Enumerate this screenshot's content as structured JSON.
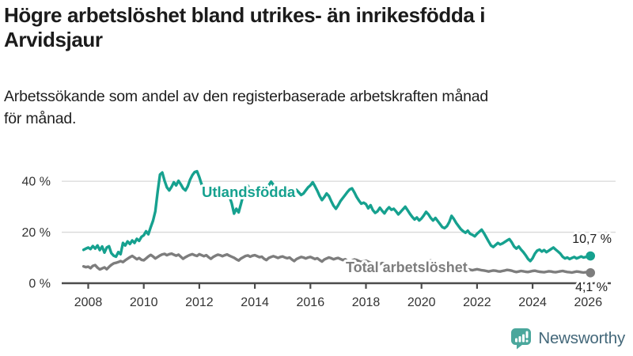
{
  "header": {
    "title_lines": [
      "Högre arbetslöshet bland utrikes- än inrikesfödda i",
      "Arvidsjaur"
    ],
    "subtitle_lines": [
      "Arbetssökande som andel av den registerbaserade arbetskraften månad",
      "för månad."
    ]
  },
  "chart_data": {
    "type": "line",
    "unit": "%",
    "x_start": {
      "year": 2007,
      "month": 11
    },
    "x_resolution": "monthly",
    "x_tick_years": [
      2008,
      2010,
      2012,
      2014,
      2016,
      2018,
      2020,
      2022,
      2024,
      2026
    ],
    "x_tick_labels": [
      "2008",
      "2010",
      "2012",
      "2014",
      "2016",
      "2018",
      "2020",
      "2022",
      "2024",
      "2026"
    ],
    "y_ticks": [
      0,
      20,
      40
    ],
    "y_tick_labels": [
      "0 %",
      "20 %",
      "40 %"
    ],
    "ylim": [
      0,
      46
    ],
    "grid": "horizontal",
    "grid_color": "#d9d9d9",
    "axis_color": "#4c4c4c",
    "series": [
      {
        "name": "Utlandsfödda",
        "color": "#16a18f",
        "end_value": 10.7,
        "end_label": "10,7 %",
        "values": [
          13.1,
          13.6,
          14.0,
          13.4,
          14.6,
          13.6,
          14.8,
          13.0,
          14.4,
          12.0,
          14.0,
          14.5,
          11.8,
          10.8,
          10.4,
          12.2,
          11.4,
          15.8,
          14.8,
          16.4,
          15.4,
          16.8,
          15.8,
          17.4,
          16.6,
          18.2,
          18.8,
          20.4,
          19.2,
          22.0,
          24.5,
          28.2,
          36.0,
          42.6,
          43.4,
          40.2,
          37.6,
          36.4,
          37.8,
          39.6,
          38.4,
          40.2,
          38.8,
          37.2,
          36.4,
          38.0,
          40.6,
          42.4,
          43.6,
          43.9,
          41.6,
          38.8,
          37.6,
          37.0,
          37.8,
          36.8,
          37.4,
          36.6,
          37.2,
          36.4,
          36.0,
          35.6,
          35.2,
          34.0,
          31.4,
          27.3,
          29.2,
          27.8,
          31.2,
          34.6,
          37.6,
          38.2,
          36.4,
          35.6,
          35.0,
          34.2,
          35.4,
          34.6,
          35.8,
          36.6,
          38.4,
          39.8,
          38.6,
          36.8,
          35.6,
          34.8,
          35.4,
          36.6,
          37.6,
          36.2,
          34.8,
          35.4,
          36.6,
          35.6,
          34.6,
          35.2,
          36.4,
          37.6,
          38.4,
          39.6,
          38.0,
          36.2,
          34.2,
          32.6,
          33.8,
          35.2,
          34.2,
          32.2,
          30.4,
          29.2,
          30.6,
          32.2,
          33.4,
          34.6,
          35.8,
          36.8,
          37.2,
          35.6,
          33.8,
          32.4,
          31.2,
          31.6,
          31.0,
          29.4,
          30.6,
          28.6,
          27.6,
          28.2,
          29.6,
          28.4,
          27.4,
          28.8,
          29.8,
          28.8,
          29.2,
          28.2,
          27.0,
          28.0,
          29.0,
          30.0,
          28.6,
          27.2,
          26.0,
          25.0,
          25.8,
          24.6,
          25.4,
          26.6,
          28.0,
          27.0,
          25.6,
          24.6,
          25.6,
          24.4,
          23.2,
          22.0,
          21.6,
          22.4,
          24.0,
          26.4,
          25.2,
          23.6,
          22.4,
          21.2,
          20.4,
          19.8,
          20.6,
          19.4,
          19.0,
          18.4,
          19.4,
          20.2,
          21.0,
          19.6,
          18.0,
          16.4,
          14.8,
          14.2,
          15.0,
          15.8,
          15.2,
          15.6,
          16.2,
          16.8,
          17.3,
          16.0,
          14.4,
          13.6,
          14.4,
          13.2,
          12.2,
          11.0,
          9.6,
          8.7,
          9.8,
          11.6,
          12.8,
          13.2,
          12.4,
          13.0,
          12.2,
          12.8,
          13.4,
          14.0,
          13.2,
          12.4,
          11.6,
          10.4,
          9.7,
          10.1,
          9.5,
          9.9,
          10.3,
          9.7,
          10.1,
          10.5,
          10.1,
          10.3,
          10.4,
          10.7
        ]
      },
      {
        "name": "Total arbetslöshet",
        "color": "#7d7d7d",
        "end_value": 4.1,
        "end_label": "4,1 %",
        "values": [
          6.6,
          6.3,
          6.5,
          5.9,
          6.8,
          7.1,
          6.1,
          5.4,
          5.8,
          6.2,
          5.5,
          6.4,
          7.2,
          7.8,
          8.0,
          8.3,
          8.7,
          8.3,
          9.0,
          9.6,
          10.2,
          10.7,
          10.1,
          9.4,
          9.9,
          9.2,
          9.0,
          9.7,
          10.5,
          11.1,
          10.5,
          9.7,
          10.3,
          10.9,
          11.3,
          11.5,
          11.0,
          11.4,
          11.6,
          11.2,
          10.8,
          11.2,
          10.4,
          9.6,
          10.2,
          10.7,
          11.1,
          11.4,
          11.0,
          10.7,
          11.4,
          11.0,
          10.6,
          11.0,
          10.2,
          9.6,
          10.3,
          10.8,
          11.2,
          11.0,
          10.6,
          11.0,
          11.3,
          10.8,
          10.4,
          10.0,
          9.4,
          8.9,
          9.7,
          10.2,
          10.7,
          10.9,
          10.4,
          10.8,
          11.0,
          10.6,
          10.2,
          10.4,
          9.6,
          9.1,
          9.9,
          10.3,
          10.6,
          10.3,
          9.9,
          10.3,
          10.5,
          10.1,
          9.8,
          10.1,
          9.3,
          8.7,
          9.5,
          9.9,
          10.3,
          10.1,
          9.7,
          10.1,
          10.3,
          9.9,
          9.5,
          9.8,
          9.1,
          8.5,
          9.3,
          9.7,
          10.1,
          9.8,
          9.4,
          9.7,
          9.9,
          9.5,
          9.1,
          9.4,
          8.7,
          8.1,
          8.9,
          9.3,
          9.1,
          8.7,
          8.3,
          8.6,
          8.8,
          8.4,
          8.0,
          7.7,
          7.3,
          6.9,
          7.5,
          7.9,
          7.7,
          7.3,
          7.0,
          7.3,
          7.5,
          7.1,
          6.8,
          7.0,
          6.5,
          6.1,
          6.7,
          7.1,
          6.9,
          6.6,
          6.3,
          6.6,
          6.8,
          7.0,
          7.9,
          8.7,
          8.9,
          8.5,
          8.1,
          7.7,
          7.3,
          6.9,
          6.7,
          6.5,
          6.7,
          6.5,
          6.3,
          6.1,
          5.9,
          5.7,
          5.9,
          5.7,
          5.5,
          5.3,
          5.1,
          5.3,
          5.5,
          5.3,
          5.1,
          5.0,
          4.8,
          4.6,
          4.8,
          5.0,
          4.9,
          4.7,
          4.6,
          4.8,
          5.0,
          5.2,
          5.1,
          4.9,
          4.6,
          4.4,
          4.6,
          4.8,
          4.7,
          4.5,
          4.4,
          4.6,
          4.8,
          4.9,
          4.7,
          4.5,
          4.4,
          4.3,
          4.5,
          4.7,
          4.6,
          4.4,
          4.3,
          4.5,
          4.7,
          4.8,
          4.6,
          4.4,
          4.3,
          4.2,
          4.4,
          4.6,
          4.5,
          4.3,
          4.2,
          4.3,
          4.3,
          4.1
        ]
      }
    ]
  },
  "branding": {
    "wordmark": "Newsworthy",
    "logo_icon": "bar-chart-speech-bubble",
    "logo_color": "#4aa79c",
    "wordmark_color": "#44687a"
  }
}
